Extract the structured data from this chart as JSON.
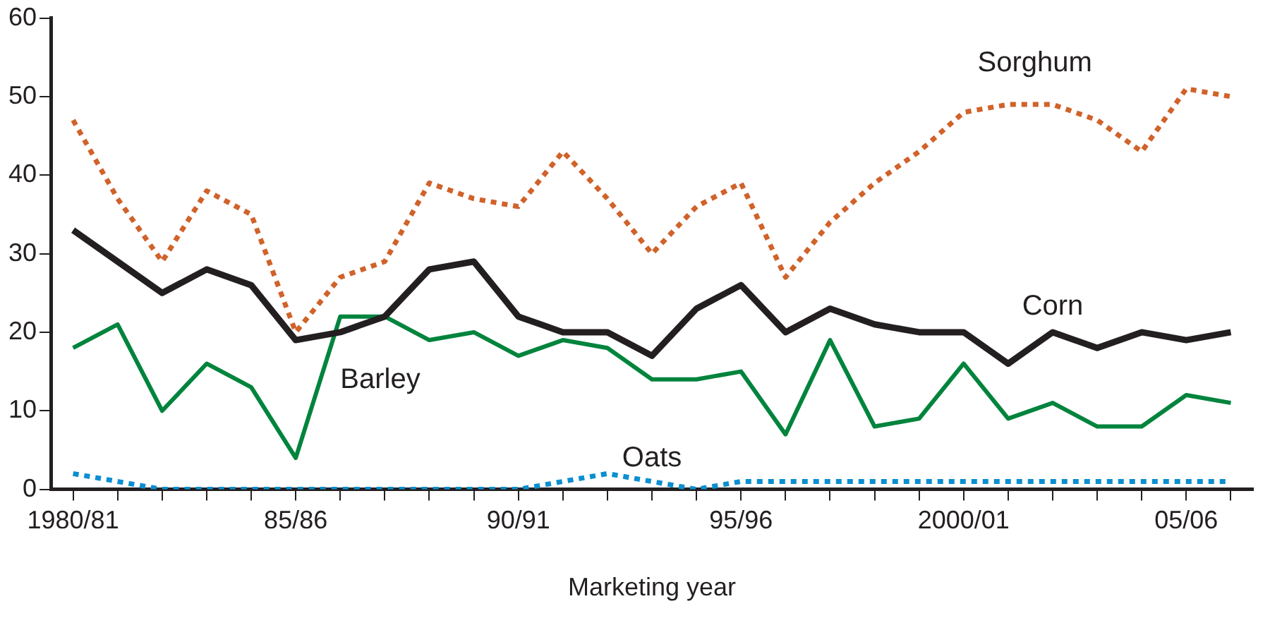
{
  "chart_data": {
    "type": "line",
    "xlabel": "Marketing year",
    "categories": [
      "1980/81",
      null,
      null,
      null,
      null,
      "85/86",
      null,
      null,
      null,
      null,
      "90/91",
      null,
      null,
      null,
      null,
      "95/96",
      null,
      null,
      null,
      null,
      "2000/01",
      null,
      null,
      null,
      null,
      "05/06",
      null
    ],
    "series": [
      {
        "name": "Sorghum",
        "color": "#d0622a",
        "line_style": "dotted",
        "values": [
          47,
          37,
          29,
          38,
          35,
          20,
          27,
          29,
          39,
          37,
          36,
          43,
          37,
          30,
          36,
          39,
          27,
          34,
          39,
          43,
          48,
          49,
          49,
          47,
          43,
          51,
          50
        ]
      },
      {
        "name": "Corn",
        "color": "#231f20",
        "line_style": "solid",
        "values": [
          33,
          29,
          25,
          28,
          26,
          19,
          20,
          22,
          28,
          29,
          22,
          20,
          20,
          17,
          23,
          26,
          20,
          23,
          21,
          20,
          20,
          16,
          20,
          18,
          20,
          19,
          20
        ]
      },
      {
        "name": "Barley",
        "color": "#00843d",
        "line_style": "solid",
        "values": [
          18,
          21,
          10,
          16,
          13,
          4,
          22,
          22,
          19,
          20,
          17,
          19,
          18,
          14,
          14,
          15,
          7,
          19,
          8,
          9,
          16,
          9,
          11,
          8,
          8,
          12,
          11
        ]
      },
      {
        "name": "Oats",
        "color": "#0a8fd0",
        "line_style": "dotted",
        "values": [
          2,
          1,
          0,
          0,
          0,
          0,
          0,
          0,
          0,
          0,
          0,
          1,
          2,
          1,
          0,
          1,
          1,
          1,
          1,
          1,
          1,
          1,
          1,
          1,
          1,
          1,
          1
        ]
      }
    ],
    "ylim": [
      0,
      60
    ],
    "yticks": [
      0,
      10,
      20,
      30,
      40,
      50,
      60
    ],
    "grid": false,
    "legend": false,
    "marker": "none"
  }
}
